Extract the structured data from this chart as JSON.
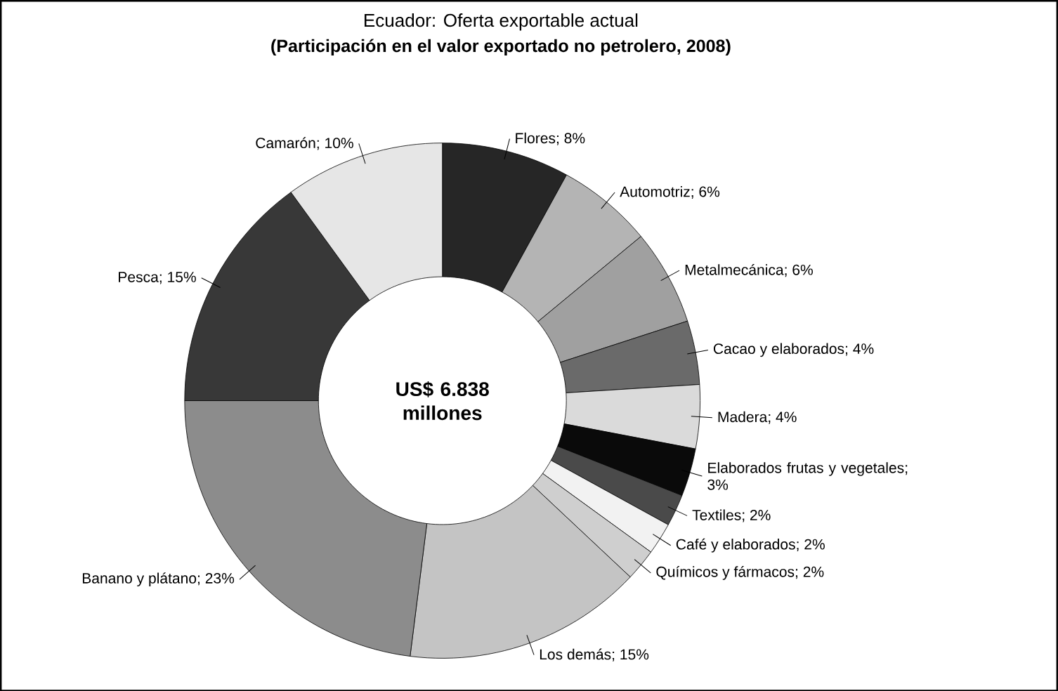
{
  "chart_data": {
    "type": "donut",
    "title": "Ecuador: Oferta exportable actual",
    "subtitle": "(Participación en el valor exportado no petrolero, 2008)",
    "categories": [
      "Flores; 8%",
      "Automotriz; 6%",
      "Metalmecánica; 6%",
      "Cacao y elaborados; 4%",
      "Madera; 4%",
      "Elaborados frutas y vegetales; 3%",
      "Textiles; 2%",
      "Café y elaborados; 2%",
      "Químicos y fármacos; 2%",
      "Los demás; 15%",
      "Banano y plátano; 23%",
      "Pesca; 15%",
      "Camarón; 10%"
    ],
    "values": [
      8,
      6,
      6,
      4,
      4,
      3,
      2,
      2,
      2,
      15,
      23,
      15,
      10
    ],
    "colors": [
      "#262626",
      "#b4b4b4",
      "#a0a0a0",
      "#6a6a6a",
      "#dadada",
      "#0a0a0a",
      "#4a4a4a",
      "#f2f2f2",
      "#cfcfcf",
      "#c4c4c4",
      "#8c8c8c",
      "#383838",
      "#e6e6e6"
    ],
    "annotations": [
      "US$ 6.838 millones"
    ]
  }
}
